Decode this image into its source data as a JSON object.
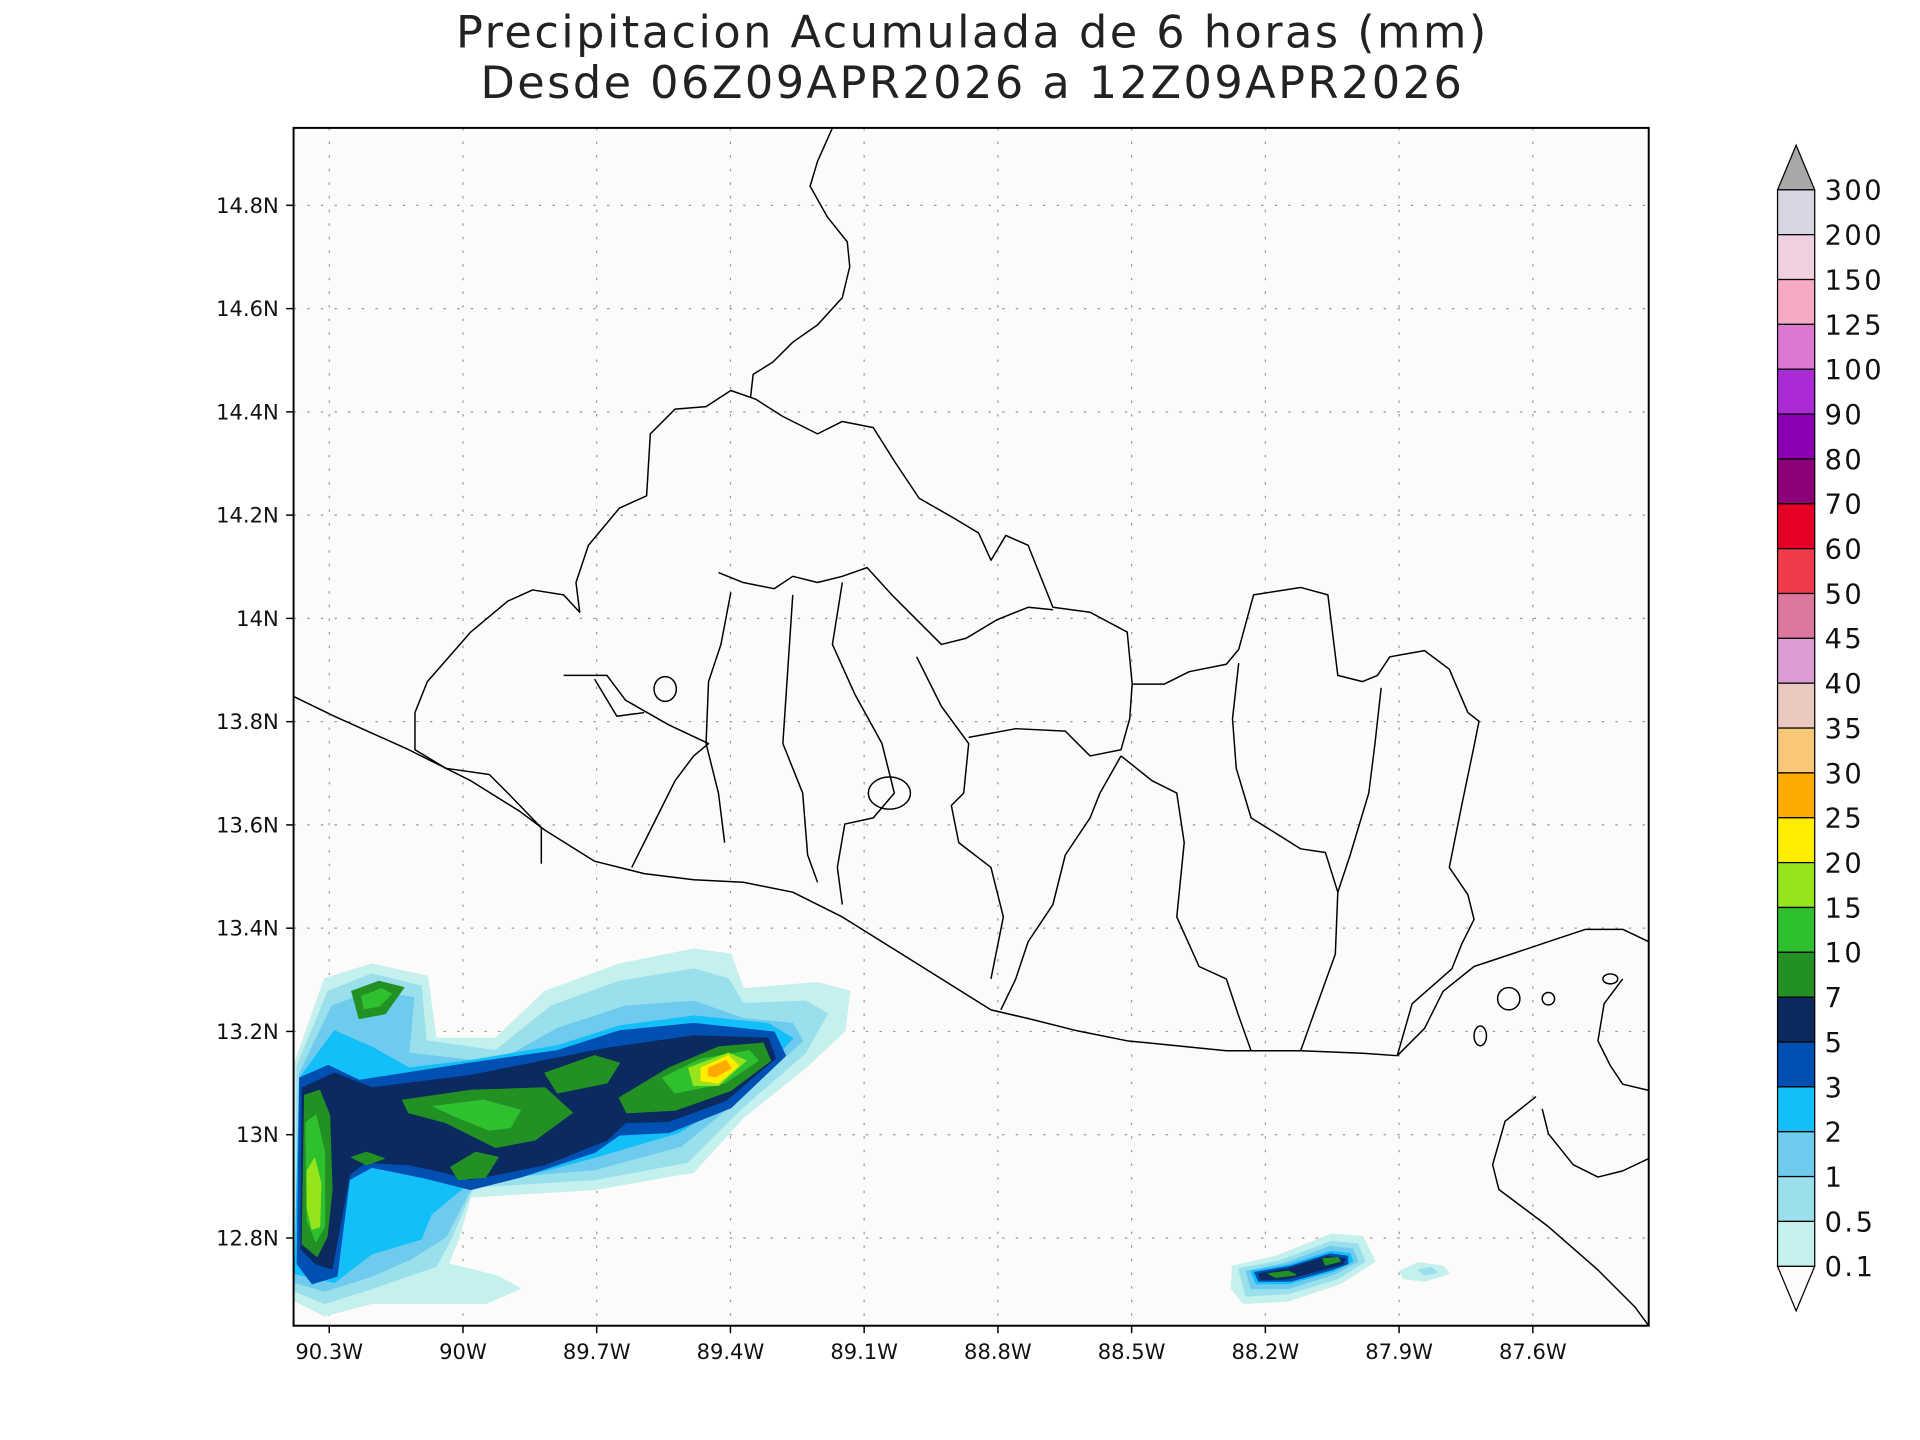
{
  "chart_data": {
    "type": "heatmap",
    "subtype": "filled contour map",
    "title": [
      "Precipitacion Acumulada de 6 horas (mm)",
      "Desde 06Z09APR2026 a 12Z09APR2026"
    ],
    "variable_units": "mm",
    "xlim": [
      -90.38,
      -87.34
    ],
    "ylim": [
      12.63,
      14.95
    ],
    "grid": true,
    "x_ticks": [
      "90.3W",
      "90W",
      "89.7W",
      "89.4W",
      "89.1W",
      "88.8W",
      "88.5W",
      "88.2W",
      "87.9W",
      "87.6W"
    ],
    "x_tick_values": [
      -90.3,
      -90.0,
      -89.7,
      -89.4,
      -89.1,
      -88.8,
      -88.5,
      -88.2,
      -87.9,
      -87.6
    ],
    "y_ticks": [
      "14.8N",
      "14.6N",
      "14.4N",
      "14.2N",
      "14N",
      "13.8N",
      "13.6N",
      "13.4N",
      "13.2N",
      "13N",
      "12.8N"
    ],
    "y_tick_values": [
      14.8,
      14.6,
      14.4,
      14.2,
      14.0,
      13.8,
      13.6,
      13.4,
      13.2,
      13.0,
      12.8
    ],
    "colorbar": {
      "placement": "right",
      "labels": [
        "300",
        "200",
        "150",
        "125",
        "100",
        "90",
        "80",
        "70",
        "60",
        "50",
        "45",
        "40",
        "35",
        "30",
        "25",
        "20",
        "15",
        "10",
        "7",
        "5",
        "3",
        "2",
        "1",
        "0.5",
        "0.1"
      ],
      "colors_top_to_bottom": [
        "#d6d6e4",
        "#f0d0e0",
        "#f8aac4",
        "#dc78d2",
        "#aa2ad4",
        "#8c00b4",
        "#8c0078",
        "#e60026",
        "#f03c4a",
        "#dc78a0",
        "#dc9cd6",
        "#ebc8c0",
        "#f8c878",
        "#ffaa00",
        "#ffee00",
        "#96e41a",
        "#2ec02e",
        "#229022",
        "#0a2a60",
        "#0050b4",
        "#12bff8",
        "#6fcbee",
        "#9ae0ec",
        "#c4f0ee"
      ],
      "over_color": "#a8a8a8",
      "under_color": "#fdfafa"
    },
    "precipitation_maxima": [
      {
        "area": "offshore southwest of El Salvador near 89.4W 13.1N",
        "max_range_mm": "25-30"
      },
      {
        "area": "offshore near 90.35W 12.9N",
        "max_range_mm": "15-20"
      },
      {
        "area": "offshore near 88.1W 12.75N",
        "max_range_mm": "7-10"
      }
    ]
  },
  "colors": {
    "background": "#fdfafa",
    "coastline": "#000000"
  }
}
